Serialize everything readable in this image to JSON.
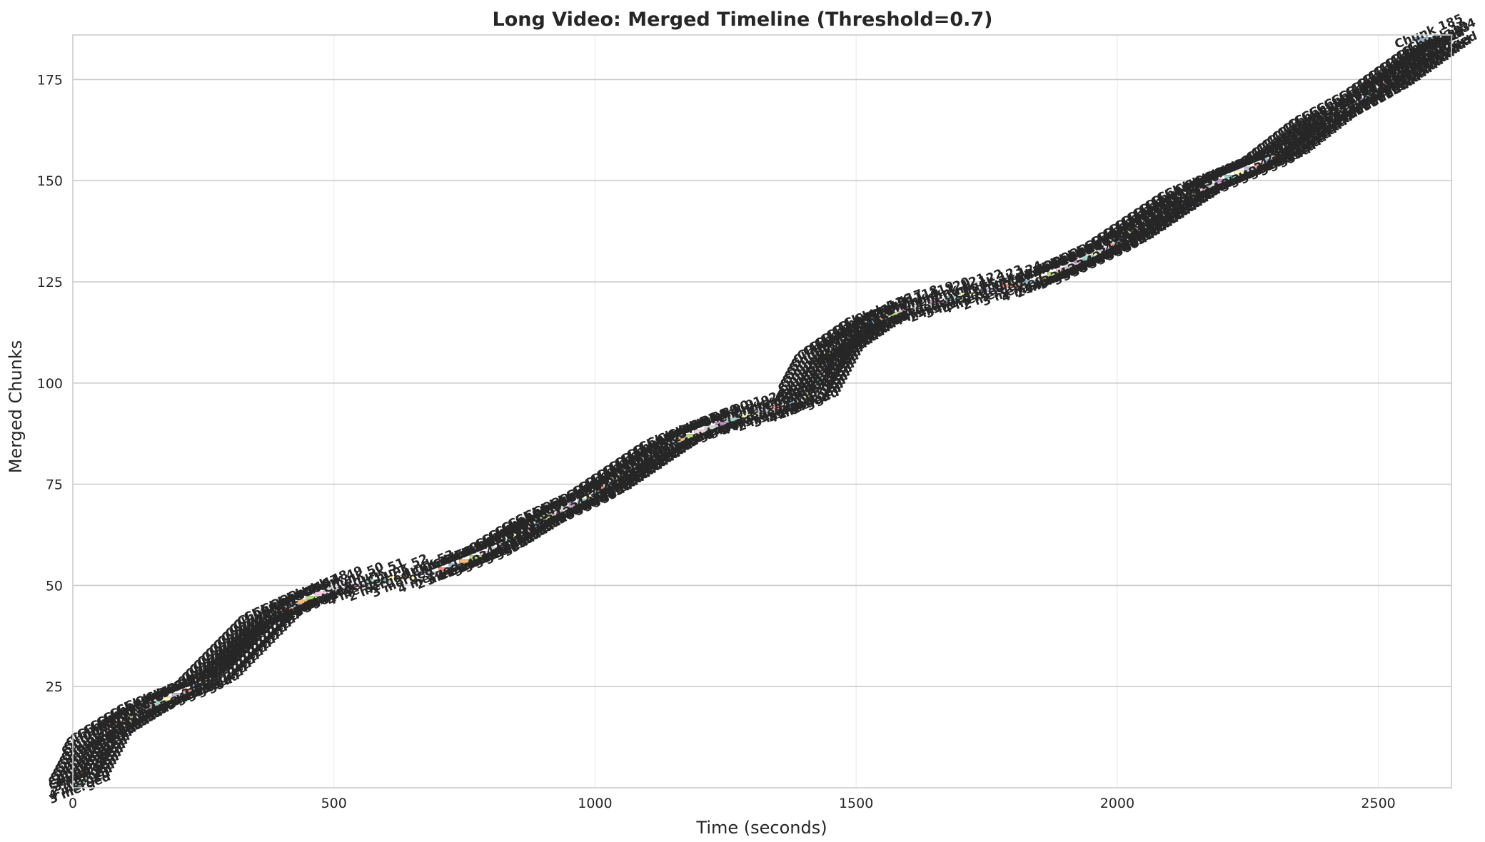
{
  "chart_data": {
    "type": "bar",
    "orientation": "horizontal-timeline",
    "title": "Long Video: Merged Timeline (Threshold=0.7)",
    "xlabel": "Time (seconds)",
    "ylabel": "Merged Chunks",
    "xlim": [
      0,
      2640
    ],
    "ylim": [
      0,
      186
    ],
    "xticks": [
      "0",
      "500",
      "1000",
      "1500",
      "2000",
      "2500"
    ],
    "yticks": [
      "25",
      "50",
      "75",
      "100",
      "125",
      "150",
      "175"
    ],
    "grid": true,
    "legend": "none",
    "chunk_count": 185,
    "label_template": "Chunk {n}",
    "merge_template": "{m} merged",
    "first_chunk": {
      "chunk": 1,
      "start_s": 0,
      "end_s": 20,
      "merged": 3
    },
    "last_chunk": {
      "chunk": 185,
      "start_s": 2565,
      "end_s": 2640
    },
    "progression_points": [
      {
        "t": 0,
        "chunk": 0
      },
      {
        "t": 50,
        "chunk": 12
      },
      {
        "t": 150,
        "chunk": 20
      },
      {
        "t": 250,
        "chunk": 25
      },
      {
        "t": 380,
        "chunk": 42
      },
      {
        "t": 480,
        "chunk": 48
      },
      {
        "t": 600,
        "chunk": 51
      },
      {
        "t": 700,
        "chunk": 53
      },
      {
        "t": 800,
        "chunk": 58
      },
      {
        "t": 900,
        "chunk": 66
      },
      {
        "t": 1000,
        "chunk": 72
      },
      {
        "t": 1150,
        "chunk": 85
      },
      {
        "t": 1250,
        "chunk": 90
      },
      {
        "t": 1400,
        "chunk": 95
      },
      {
        "t": 1450,
        "chunk": 107
      },
      {
        "t": 1550,
        "chunk": 116
      },
      {
        "t": 1700,
        "chunk": 121
      },
      {
        "t": 1850,
        "chunk": 125
      },
      {
        "t": 2000,
        "chunk": 134
      },
      {
        "t": 2150,
        "chunk": 147
      },
      {
        "t": 2300,
        "chunk": 155
      },
      {
        "t": 2400,
        "chunk": 165
      },
      {
        "t": 2500,
        "chunk": 172
      },
      {
        "t": 2640,
        "chunk": 185
      }
    ],
    "colors": {
      "segments": [
        "#8dd3c7",
        "#ffffb3",
        "#bebada",
        "#fb8072",
        "#80b1d3",
        "#fdb462",
        "#b3de69",
        "#fccde5",
        "#d9d9d9",
        "#bc80bd"
      ],
      "text": "#262626",
      "grid": "#cccccc",
      "grid_minor": "#ebebeb",
      "frame": "#cccccc"
    }
  }
}
